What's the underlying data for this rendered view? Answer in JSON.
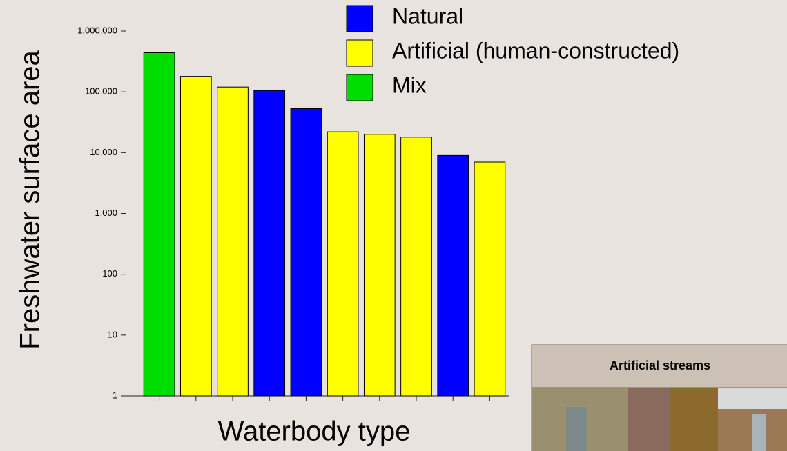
{
  "chart_data": {
    "type": "bar",
    "xlabel": "Waterbody type",
    "ylabel": "Freshwater surface area",
    "categories": [
      null,
      null,
      null,
      null,
      null,
      null,
      null,
      null,
      null,
      null
    ],
    "series": [
      {
        "name": "Natural",
        "color": "#0000ff",
        "values": [
          null,
          null,
          null,
          105000,
          53000,
          null,
          null,
          null,
          9000,
          null
        ]
      },
      {
        "name": "Artificial (human-constructed)",
        "color": "#ffff00",
        "values": [
          null,
          180000,
          120000,
          null,
          null,
          22000,
          20000,
          18000,
          null,
          7000
        ]
      },
      {
        "name": "Mix",
        "color": "#00dd00",
        "values": [
          440000,
          null,
          null,
          null,
          null,
          null,
          null,
          null,
          null,
          null
        ]
      }
    ],
    "ylim": [
      1,
      1000000
    ],
    "yticks": [
      1,
      10,
      100,
      {
        "value": 1000,
        "label": "1,000"
      },
      {
        "value": 10000,
        "label": "10,000"
      },
      {
        "value": 100000,
        "label": "100,000"
      },
      {
        "value": 1000000,
        "label": "1,000,000"
      }
    ],
    "log_scale": true,
    "grid": false
  },
  "inset": {
    "title": "Artificial streams"
  }
}
